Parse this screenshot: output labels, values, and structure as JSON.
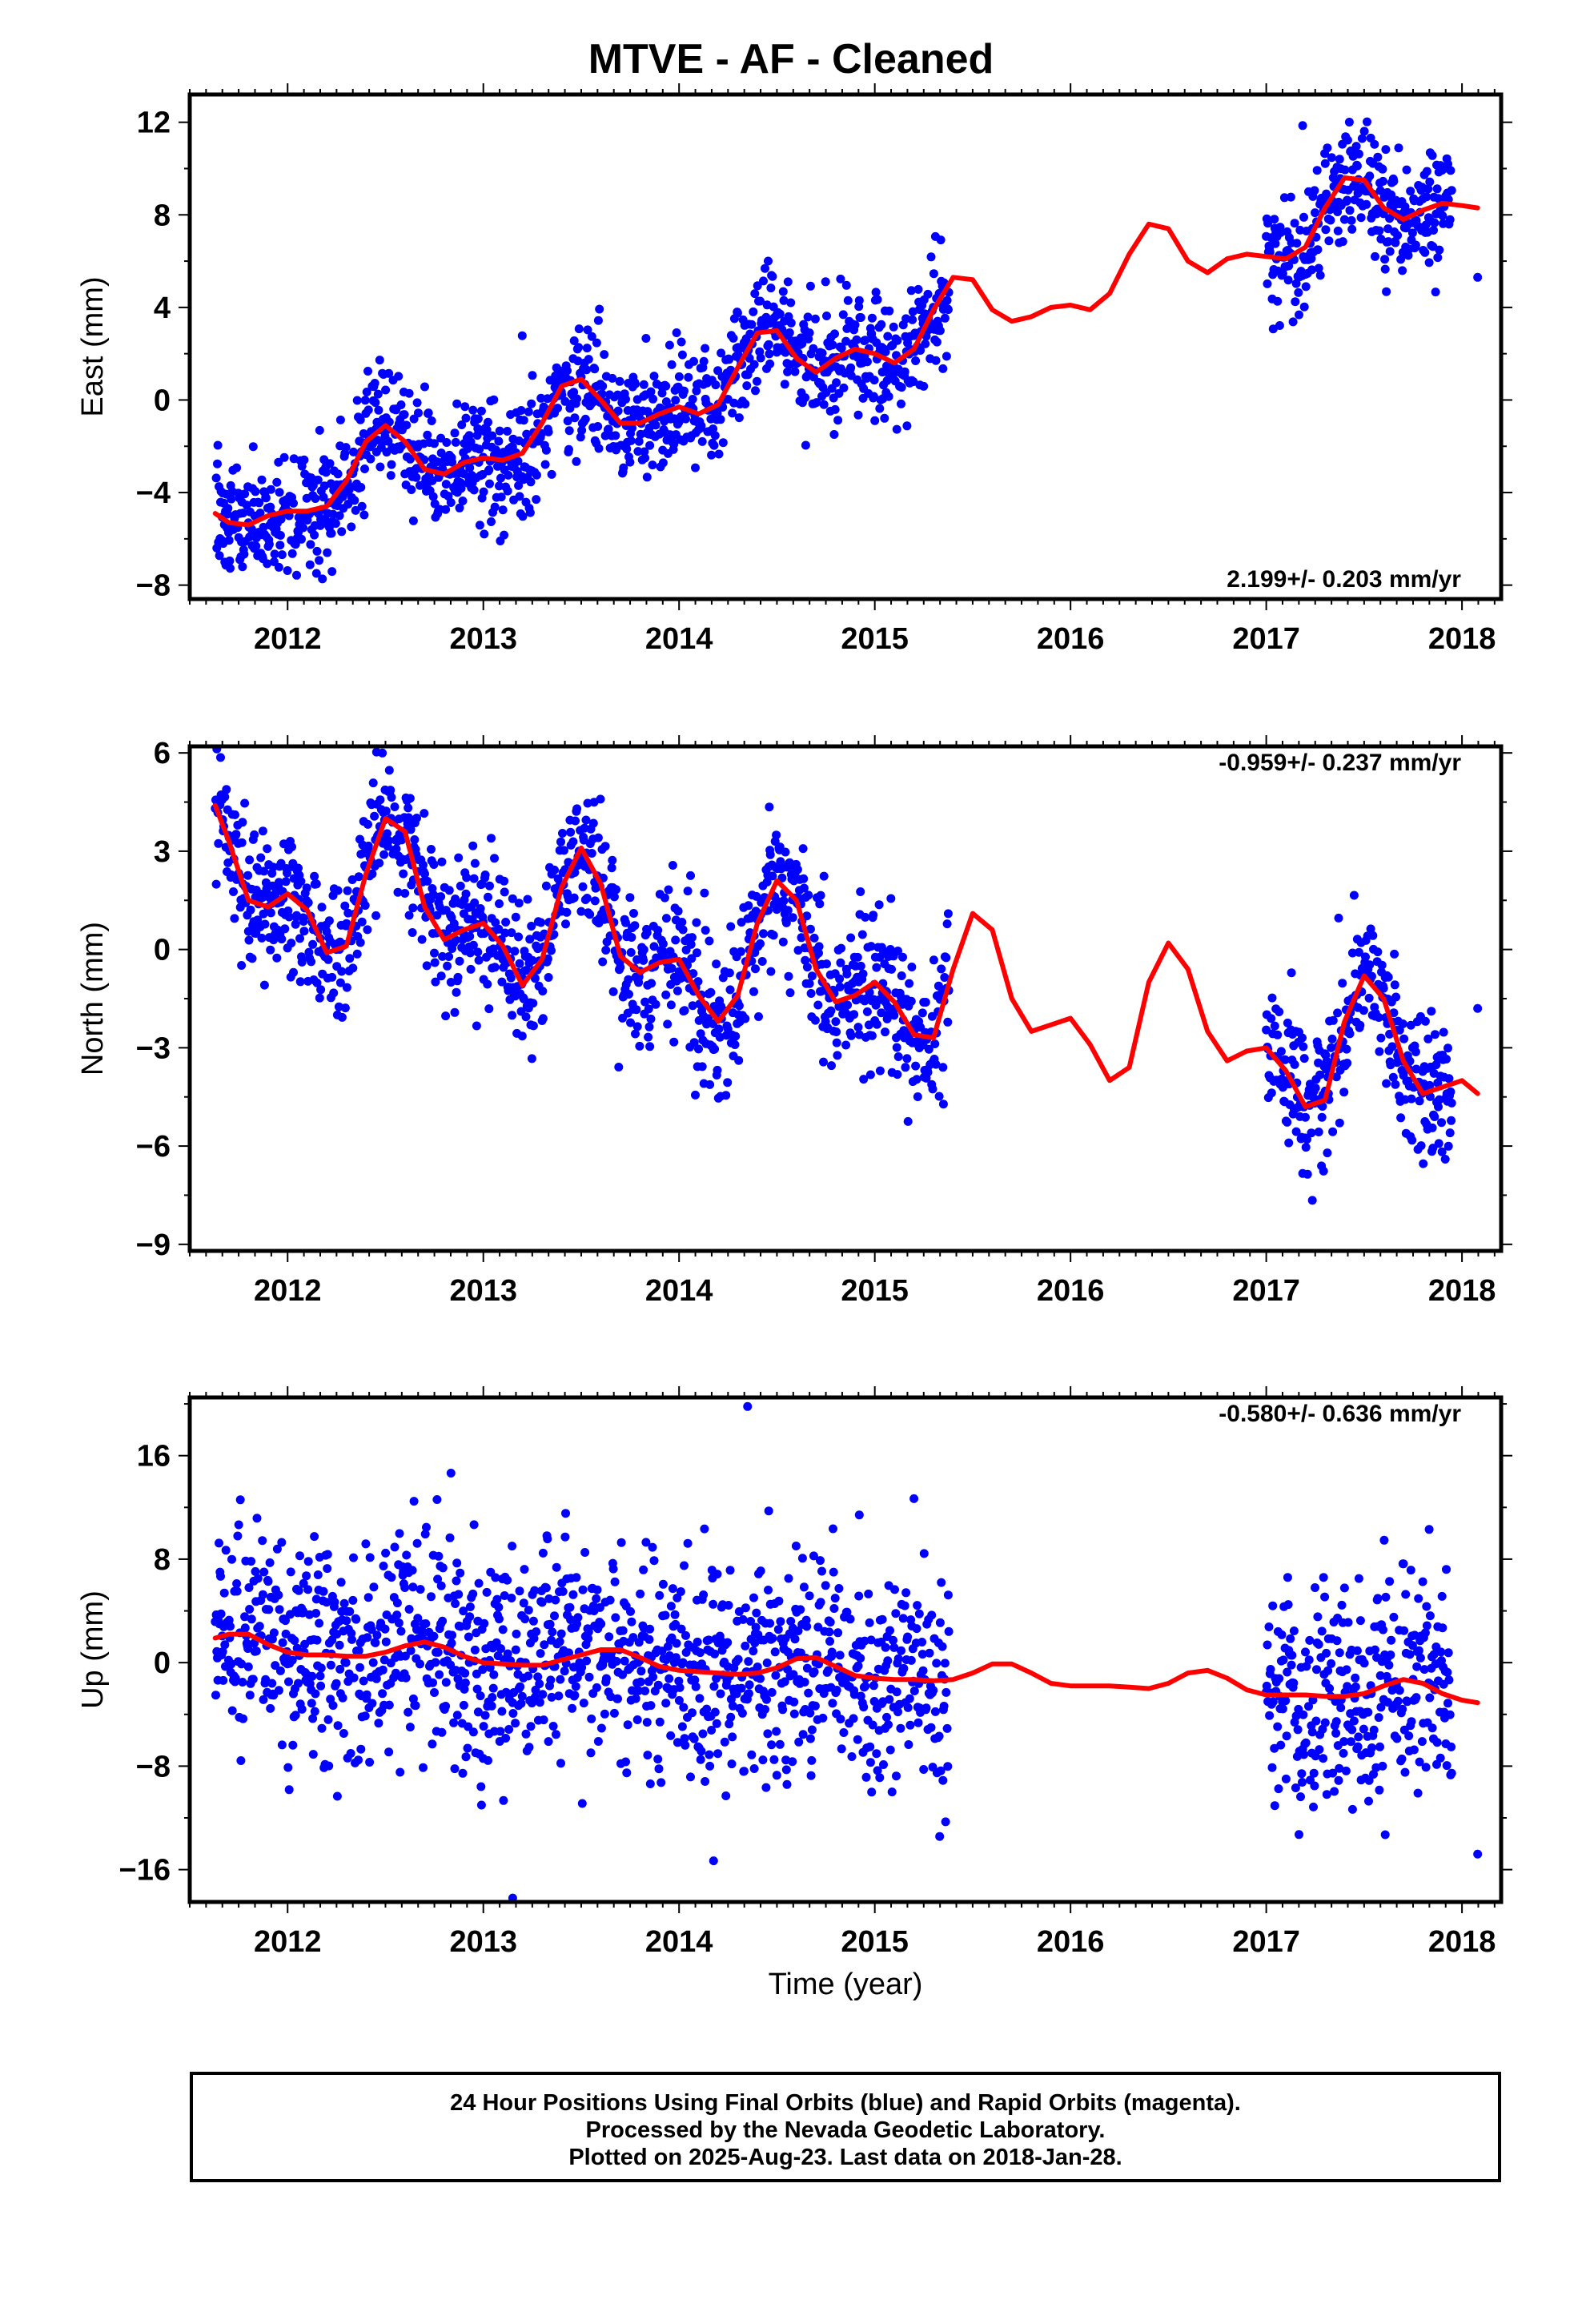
{
  "title": "MTVE  - AF - Cleaned",
  "xlabel": "Time (year)",
  "footer": [
    "24 Hour Positions Using Final Orbits (blue) and Rapid Orbits (magenta).",
    "Processed by the Nevada Geodetic Laboratory.",
    "Plotted on 2025-Aug-23. Last data on 2018-Jan-28."
  ],
  "colors": {
    "points": "#0000ff",
    "model": "#ff0000",
    "frame": "#000000"
  },
  "chart_data": [
    {
      "type": "scatter",
      "ylabel": "East (mm)",
      "rate_label": "2.199+/- 0.203 mm/yr",
      "xlim": [
        2011.5,
        2018.2
      ],
      "ylim": [
        -8.6,
        13.2
      ],
      "xticks": [
        2012,
        2013,
        2014,
        2015,
        2016,
        2017,
        2018
      ],
      "yticks": [
        -8,
        -4,
        0,
        4,
        8,
        12
      ],
      "point_segments": [
        [
          2011.63,
          2015.38
        ],
        [
          2017.0,
          2017.95
        ]
      ],
      "isolated_points": [
        [
          2018.08,
          5.3
        ]
      ],
      "scatter_sigma": 1.3,
      "model": {
        "x": [
          2011.63,
          2011.7,
          2011.8,
          2011.9,
          2012.0,
          2012.1,
          2012.2,
          2012.3,
          2012.4,
          2012.5,
          2012.6,
          2012.7,
          2012.8,
          2012.9,
          2013.0,
          2013.1,
          2013.2,
          2013.3,
          2013.4,
          2013.5,
          2013.6,
          2013.7,
          2013.8,
          2013.9,
          2014.0,
          2014.1,
          2014.2,
          2014.3,
          2014.4,
          2014.5,
          2014.6,
          2014.7,
          2014.8,
          2014.9,
          2015.0,
          2015.1,
          2015.2,
          2015.3,
          2015.4,
          2015.5,
          2015.6,
          2015.7,
          2015.8,
          2015.9,
          2016.0,
          2016.1,
          2016.2,
          2016.3,
          2016.4,
          2016.5,
          2016.6,
          2016.7,
          2016.8,
          2016.9,
          2017.0,
          2017.1,
          2017.2,
          2017.3,
          2017.4,
          2017.5,
          2017.6,
          2017.7,
          2017.8,
          2017.9,
          2018.0,
          2018.08
        ],
        "y": [
          -4.9,
          -5.3,
          -5.4,
          -5.0,
          -4.8,
          -4.8,
          -4.6,
          -3.5,
          -1.8,
          -1.1,
          -1.8,
          -3.0,
          -3.2,
          -2.7,
          -2.5,
          -2.6,
          -2.3,
          -1.0,
          0.6,
          0.9,
          0.0,
          -1.0,
          -1.0,
          -0.6,
          -0.3,
          -0.6,
          -0.2,
          1.4,
          2.9,
          3.0,
          1.8,
          1.2,
          1.8,
          2.2,
          2.0,
          1.6,
          2.2,
          3.9,
          5.3,
          5.2,
          3.9,
          3.4,
          3.6,
          4.0,
          4.1,
          3.9,
          4.6,
          6.3,
          7.6,
          7.4,
          6.0,
          5.5,
          6.1,
          6.3,
          6.2,
          6.1,
          6.6,
          8.3,
          9.6,
          9.5,
          8.3,
          7.8,
          8.2,
          8.5,
          8.4,
          8.3
        ]
      }
    },
    {
      "type": "scatter",
      "ylabel": "North (mm)",
      "rate_label": "-0.959+/- 0.237 mm/yr",
      "xlim": [
        2011.5,
        2018.2
      ],
      "ylim": [
        -9.2,
        6.2
      ],
      "xticks": [
        2012,
        2013,
        2014,
        2015,
        2016,
        2017,
        2018
      ],
      "yticks": [
        -9,
        -6,
        -3,
        0,
        3,
        6
      ],
      "point_segments": [
        [
          2011.63,
          2015.38
        ],
        [
          2017.0,
          2017.95
        ]
      ],
      "isolated_points": [
        [
          2018.08,
          -1.8
        ]
      ],
      "scatter_sigma": 1.1,
      "model": {
        "x": [
          2011.63,
          2011.7,
          2011.8,
          2011.9,
          2012.0,
          2012.1,
          2012.2,
          2012.3,
          2012.4,
          2012.5,
          2012.6,
          2012.7,
          2012.8,
          2012.9,
          2013.0,
          2013.1,
          2013.2,
          2013.3,
          2013.4,
          2013.5,
          2013.6,
          2013.7,
          2013.8,
          2013.9,
          2014.0,
          2014.1,
          2014.2,
          2014.3,
          2014.4,
          2014.5,
          2014.6,
          2014.7,
          2014.8,
          2014.9,
          2015.0,
          2015.1,
          2015.2,
          2015.3,
          2015.4,
          2015.5,
          2015.6,
          2015.7,
          2015.8,
          2015.9,
          2016.0,
          2016.1,
          2016.2,
          2016.3,
          2016.4,
          2016.5,
          2016.6,
          2016.7,
          2016.8,
          2016.9,
          2017.0,
          2017.1,
          2017.2,
          2017.3,
          2017.4,
          2017.5,
          2017.6,
          2017.7,
          2017.8,
          2017.9,
          2018.0,
          2018.08
        ],
        "y": [
          4.4,
          3.3,
          1.5,
          1.3,
          1.7,
          1.2,
          -0.1,
          0.1,
          2.3,
          4.0,
          3.6,
          1.3,
          0.3,
          0.6,
          0.8,
          0.1,
          -1.1,
          -0.3,
          1.9,
          3.1,
          2.0,
          -0.2,
          -0.7,
          -0.4,
          -0.3,
          -1.4,
          -2.2,
          -1.4,
          0.8,
          2.1,
          1.5,
          -0.6,
          -1.6,
          -1.4,
          -1.0,
          -1.6,
          -2.6,
          -2.7,
          -0.6,
          1.1,
          0.6,
          -1.5,
          -2.5,
          -2.3,
          -2.1,
          -2.9,
          -4.0,
          -3.6,
          -1.0,
          0.2,
          -0.6,
          -2.5,
          -3.4,
          -3.1,
          -3.0,
          -3.7,
          -4.8,
          -4.6,
          -2.2,
          -0.8,
          -1.5,
          -3.4,
          -4.4,
          -4.2,
          -4.0,
          -4.4
        ]
      }
    },
    {
      "type": "scatter",
      "ylabel": "Up (mm)",
      "rate_label": "-0.580+/- 0.636 mm/yr",
      "xlim": [
        2011.5,
        2018.2
      ],
      "ylim": [
        -18.5,
        20.5
      ],
      "xticks": [
        2012,
        2013,
        2014,
        2015,
        2016,
        2017,
        2018
      ],
      "yticks": [
        -16,
        -8,
        0,
        8,
        16
      ],
      "point_segments": [
        [
          2011.63,
          2015.38
        ],
        [
          2017.0,
          2017.95
        ]
      ],
      "isolated_points": [
        [
          2018.08,
          -14.8
        ],
        [
          2014.35,
          19.8
        ],
        [
          2013.15,
          -18.2
        ]
      ],
      "scatter_sigma": 4.3,
      "model": {
        "x": [
          2011.63,
          2011.7,
          2011.8,
          2011.9,
          2012.0,
          2012.1,
          2012.2,
          2012.3,
          2012.4,
          2012.5,
          2012.6,
          2012.7,
          2012.8,
          2012.9,
          2013.0,
          2013.1,
          2013.2,
          2013.3,
          2013.4,
          2013.5,
          2013.6,
          2013.7,
          2013.8,
          2013.9,
          2014.0,
          2014.1,
          2014.2,
          2014.3,
          2014.4,
          2014.5,
          2014.6,
          2014.7,
          2014.8,
          2014.9,
          2015.0,
          2015.1,
          2015.2,
          2015.3,
          2015.4,
          2015.5,
          2015.6,
          2015.7,
          2015.8,
          2015.9,
          2016.0,
          2016.1,
          2016.2,
          2016.3,
          2016.4,
          2016.5,
          2016.6,
          2016.7,
          2016.8,
          2016.9,
          2017.0,
          2017.1,
          2017.2,
          2017.3,
          2017.4,
          2017.5,
          2017.6,
          2017.7,
          2017.8,
          2017.9,
          2018.0,
          2018.08
        ],
        "y": [
          1.9,
          2.2,
          2.2,
          1.4,
          0.8,
          0.6,
          0.6,
          0.5,
          0.5,
          0.8,
          1.3,
          1.6,
          1.2,
          0.5,
          0.0,
          -0.1,
          -0.2,
          -0.2,
          0.2,
          0.6,
          1.0,
          1.0,
          0.4,
          -0.3,
          -0.6,
          -0.7,
          -0.8,
          -0.9,
          -0.8,
          -0.4,
          0.3,
          0.4,
          -0.3,
          -1.0,
          -1.2,
          -1.3,
          -1.3,
          -1.4,
          -1.3,
          -0.8,
          -0.1,
          -0.1,
          -0.8,
          -1.6,
          -1.8,
          -1.8,
          -1.8,
          -1.9,
          -2.0,
          -1.6,
          -0.8,
          -0.6,
          -1.2,
          -2.1,
          -2.5,
          -2.5,
          -2.5,
          -2.6,
          -2.6,
          -2.4,
          -1.8,
          -1.3,
          -1.6,
          -2.4,
          -2.9,
          -3.1
        ]
      }
    }
  ]
}
